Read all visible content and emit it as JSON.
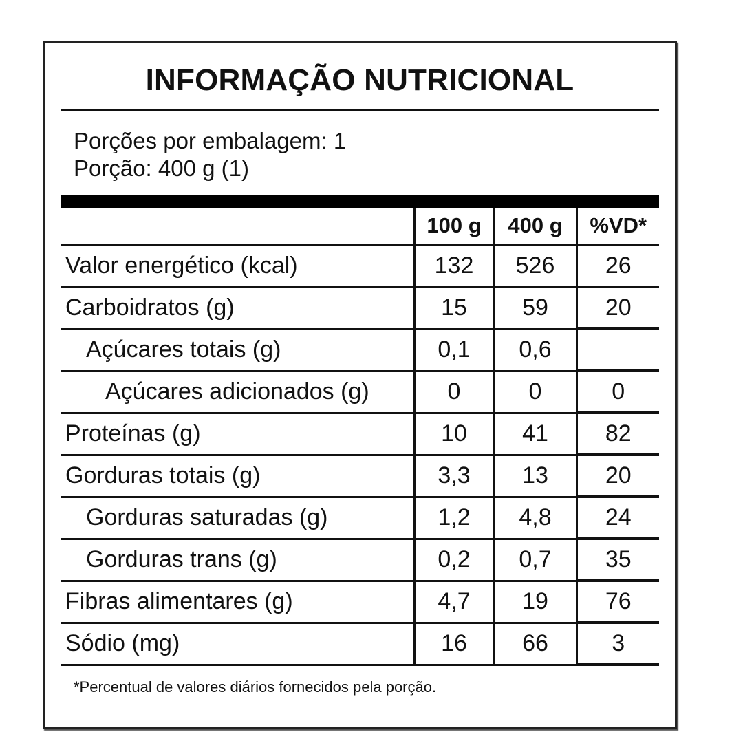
{
  "title": "INFORMAÇÃO NUTRICIONAL",
  "servings_per_package": "Porções por embalagem: 1",
  "serving_size": "Porção: 400 g (1)",
  "columns": [
    "100 g",
    "400 g",
    "%VD*"
  ],
  "rows": [
    {
      "label": "Valor energético (kcal)",
      "indent": 0,
      "per100": "132",
      "per400": "526",
      "vd": "26"
    },
    {
      "label": "Carboidratos (g)",
      "indent": 0,
      "per100": "15",
      "per400": "59",
      "vd": "20"
    },
    {
      "label": "Açúcares totais (g)",
      "indent": 1,
      "per100": "0,1",
      "per400": "0,6",
      "vd": ""
    },
    {
      "label": "Açúcares adicionados (g)",
      "indent": 2,
      "per100": "0",
      "per400": "0",
      "vd": "0"
    },
    {
      "label": "Proteínas (g)",
      "indent": 0,
      "per100": "10",
      "per400": "41",
      "vd": "82"
    },
    {
      "label": "Gorduras totais (g)",
      "indent": 0,
      "per100": "3,3",
      "per400": "13",
      "vd": "20"
    },
    {
      "label": "Gorduras saturadas (g)",
      "indent": 1,
      "per100": "1,2",
      "per400": "4,8",
      "vd": "24"
    },
    {
      "label": "Gorduras trans (g)",
      "indent": 1,
      "per100": "0,2",
      "per400": "0,7",
      "vd": "35"
    },
    {
      "label": "Fibras alimentares (g)",
      "indent": 0,
      "per100": "4,7",
      "per400": "19",
      "vd": "76"
    },
    {
      "label": "Sódio (mg)",
      "indent": 0,
      "per100": "16",
      "per400": "66",
      "vd": "3"
    }
  ],
  "footnote": "*Percentual de valores diários fornecidos pela porção."
}
